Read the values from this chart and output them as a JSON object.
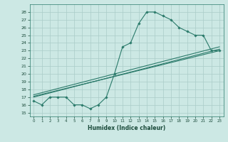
{
  "title": "",
  "xlabel": "Humidex (Indice chaleur)",
  "bg_color": "#cce8e4",
  "grid_color": "#aaccc8",
  "line_color": "#2a7a6a",
  "xlim": [
    -0.5,
    23.5
  ],
  "ylim": [
    14.5,
    29.0
  ],
  "xticks": [
    0,
    1,
    2,
    3,
    4,
    5,
    6,
    7,
    8,
    9,
    10,
    11,
    12,
    13,
    14,
    15,
    16,
    17,
    18,
    19,
    20,
    21,
    22,
    23
  ],
  "yticks": [
    15,
    16,
    17,
    18,
    19,
    20,
    21,
    22,
    23,
    24,
    25,
    26,
    27,
    28
  ],
  "curve1_x": [
    0,
    1,
    2,
    3,
    4,
    5,
    6,
    7,
    8,
    9,
    10,
    11,
    12,
    13,
    14,
    15,
    16,
    17,
    18,
    19,
    20,
    21,
    22,
    23
  ],
  "curve1_y": [
    16.5,
    16.0,
    17.0,
    17.0,
    17.0,
    16.0,
    16.0,
    15.5,
    16.0,
    17.0,
    20.0,
    23.5,
    24.0,
    26.5,
    28.0,
    28.0,
    27.5,
    27.0,
    26.0,
    25.5,
    25.0,
    25.0,
    23.0,
    23.0
  ],
  "line2_x": [
    0,
    23
  ],
  "line2_y": [
    17.0,
    23.2
  ],
  "line3_x": [
    0,
    23
  ],
  "line3_y": [
    17.3,
    23.5
  ],
  "line4_x": [
    0,
    23
  ],
  "line4_y": [
    17.1,
    23.0
  ]
}
